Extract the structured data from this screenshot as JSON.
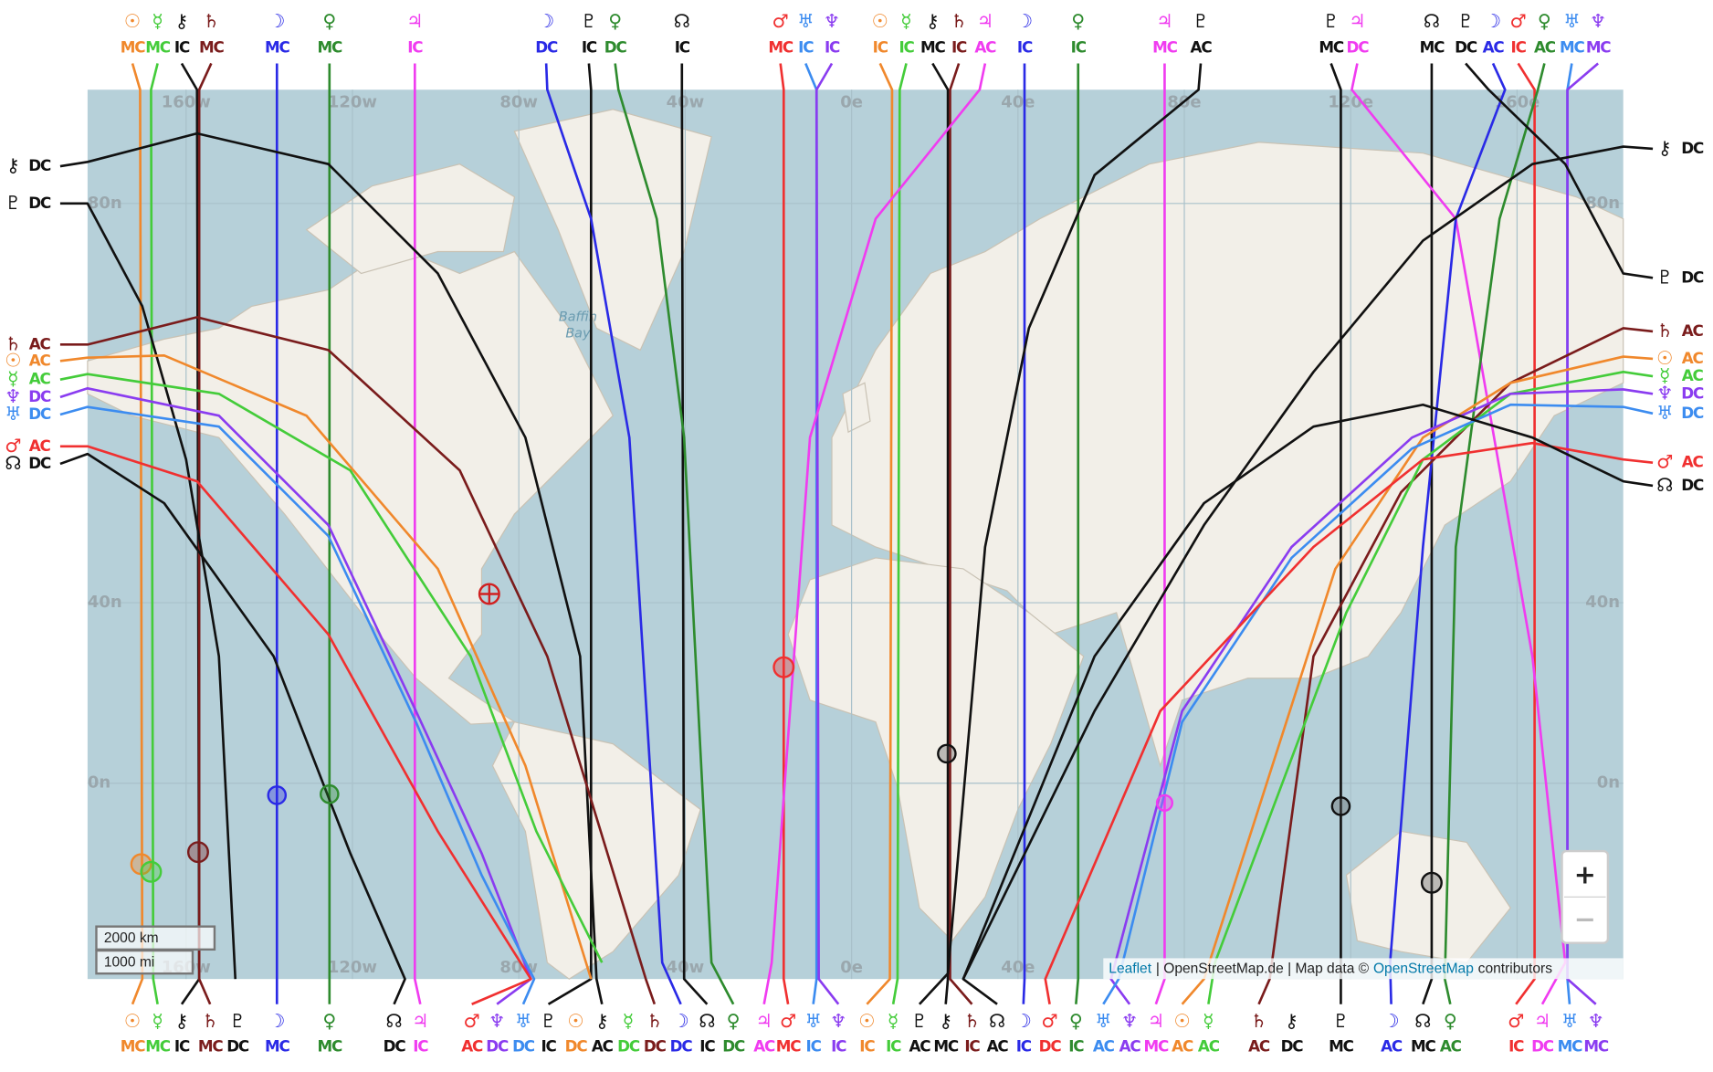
{
  "map": {
    "grid_labels": {
      "lon": [
        "160w",
        "120w",
        "80w",
        "40w",
        "0e",
        "40e",
        "80e",
        "120e",
        "160e"
      ],
      "lat": [
        "80n",
        "40n",
        "0n"
      ]
    },
    "water_label": [
      "Baffin",
      "Bay"
    ],
    "palette": {
      "☉": "#f0882c",
      "☿": "#44cc3a",
      "⚷": "#111111",
      "♄": "#7a1c1c",
      "☽": "#2a2ae6",
      "♀": "#2e8b2e",
      "♃": "#f03cf0",
      "♂": "#f03030",
      "♅": "#3c8cf0",
      "♆": "#8a3cf0",
      "♇": "#111111",
      "☊": "#111111"
    },
    "top_labels": [
      [
        "☉",
        "MC"
      ],
      [
        "☿",
        "MC"
      ],
      [
        "⚷",
        "IC"
      ],
      [
        "♄",
        "MC"
      ],
      [
        "☽",
        "MC"
      ],
      [
        "♀",
        "MC"
      ],
      [
        "♃",
        "IC"
      ],
      [
        "☽",
        "DC"
      ],
      [
        "♇",
        "IC"
      ],
      [
        "♀",
        "DC"
      ],
      [
        "☊",
        "IC"
      ],
      [
        "♂",
        "MC"
      ],
      [
        "♅",
        "IC"
      ],
      [
        "♆",
        "IC"
      ],
      [
        "☉",
        "IC"
      ],
      [
        "☿",
        "IC"
      ],
      [
        "⚷",
        "MC"
      ],
      [
        "♄",
        "IC"
      ],
      [
        "♃",
        "AC"
      ],
      [
        "☽",
        "IC"
      ],
      [
        "♀",
        "IC"
      ],
      [
        "♃",
        "MC"
      ],
      [
        "♇",
        "AC"
      ],
      [
        "♇",
        "MC"
      ],
      [
        "♃",
        "DC"
      ],
      [
        "☊",
        "MC"
      ],
      [
        "♇",
        "DC"
      ],
      [
        "☽",
        "AC"
      ],
      [
        "♂",
        "IC"
      ],
      [
        "♀",
        "AC"
      ],
      [
        "♅",
        "MC"
      ],
      [
        "♆",
        "MC"
      ]
    ],
    "bottom_labels": [
      [
        "☉",
        "MC"
      ],
      [
        "☿",
        "MC"
      ],
      [
        "⚷",
        "IC"
      ],
      [
        "♄",
        "MC"
      ],
      [
        "♇",
        "DC"
      ],
      [
        "☽",
        "MC"
      ],
      [
        "♀",
        "MC"
      ],
      [
        "☊",
        "DC"
      ],
      [
        "♃",
        "IC"
      ],
      [
        "♂",
        "AC"
      ],
      [
        "♆",
        "DC"
      ],
      [
        "♅",
        "DC"
      ],
      [
        "♇",
        "IC"
      ],
      [
        "☉",
        "DC"
      ],
      [
        "⚷",
        "AC"
      ],
      [
        "☿",
        "DC"
      ],
      [
        "♄",
        "DC"
      ],
      [
        "☽",
        "DC"
      ],
      [
        "☊",
        "IC"
      ],
      [
        "♀",
        "DC"
      ],
      [
        "♃",
        "AC"
      ],
      [
        "♂",
        "MC"
      ],
      [
        "♅",
        "IC"
      ],
      [
        "♆",
        "IC"
      ],
      [
        "☉",
        "IC"
      ],
      [
        "☿",
        "IC"
      ],
      [
        "♇",
        "AC"
      ],
      [
        "⚷",
        "MC"
      ],
      [
        "♄",
        "IC"
      ],
      [
        "☊",
        "AC"
      ],
      [
        "☽",
        "IC"
      ],
      [
        "♂",
        "DC"
      ],
      [
        "♀",
        "IC"
      ],
      [
        "♅",
        "AC"
      ],
      [
        "♆",
        "AC"
      ],
      [
        "♃",
        "MC"
      ],
      [
        "☉",
        "AC"
      ],
      [
        "☿",
        "AC"
      ],
      [
        "♄",
        "AC"
      ],
      [
        "⚷",
        "DC"
      ],
      [
        "♇",
        "MC"
      ],
      [
        "☽",
        "AC"
      ],
      [
        "☊",
        "MC"
      ],
      [
        "♀",
        "AC"
      ],
      [
        "♂",
        "IC"
      ],
      [
        "♃",
        "DC"
      ],
      [
        "♅",
        "MC"
      ],
      [
        "♆",
        "MC"
      ]
    ],
    "left_labels": [
      [
        "⚷",
        "DC"
      ],
      [
        "♇",
        "DC"
      ],
      [
        "♄",
        "AC"
      ],
      [
        "☉",
        "AC"
      ],
      [
        "☿",
        "AC"
      ],
      [
        "♆",
        "DC"
      ],
      [
        "♅",
        "DC"
      ],
      [
        "♂",
        "AC"
      ],
      [
        "☊",
        "DC"
      ]
    ],
    "right_labels": [
      [
        "⚷",
        "DC"
      ],
      [
        "♇",
        "DC"
      ],
      [
        "♄",
        "AC"
      ],
      [
        "☉",
        "AC"
      ],
      [
        "☿",
        "AC"
      ],
      [
        "♆",
        "DC"
      ],
      [
        "♅",
        "DC"
      ],
      [
        "♂",
        "AC"
      ],
      [
        "☊",
        "DC"
      ]
    ],
    "scale": [
      "2000 km",
      "1000 mi"
    ],
    "zoom": [
      "+",
      "−"
    ],
    "attribution": [
      "Leaflet",
      "| OpenStreetMap.de | Map data ©",
      "OpenStreetMap",
      "contributors"
    ]
  }
}
